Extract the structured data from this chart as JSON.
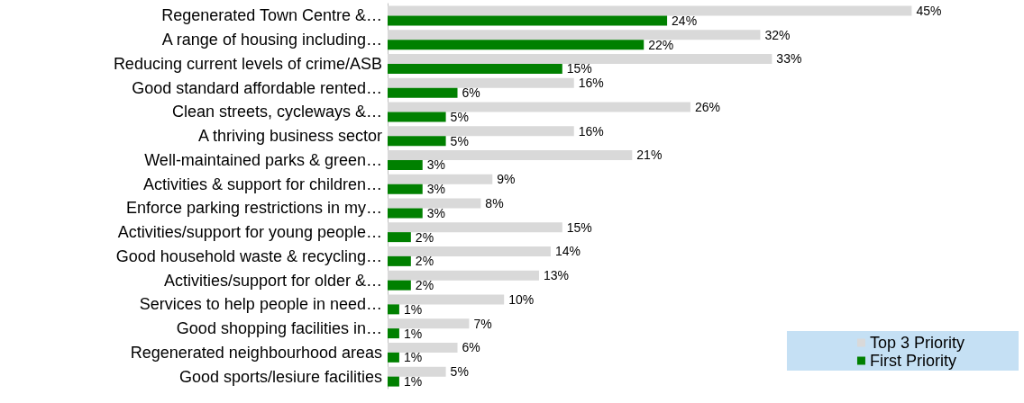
{
  "chart_data": {
    "type": "bar",
    "orientation": "horizontal",
    "categories": [
      "Regenerated Town Centre &…",
      "A range of housing including…",
      "Reducing current levels of crime/ASB",
      "Good standard affordable rented…",
      "Clean streets, cycleways &…",
      "A thriving business sector",
      "Well-maintained parks & green…",
      "Activities & support for children…",
      "Enforce parking restrictions in my…",
      "Activities/support for young people…",
      "Good household waste & recycling…",
      "Activities/support for older &…",
      "Services to help people in need…",
      "Good shopping facilities in…",
      "Regenerated neighbourhood areas",
      "Good sports/lesiure facilities"
    ],
    "series": [
      {
        "name": "Top 3 Priority",
        "color": "#d9d9d9",
        "values": [
          45,
          32,
          33,
          16,
          26,
          16,
          21,
          9,
          8,
          15,
          14,
          13,
          10,
          7,
          6,
          5
        ],
        "value_labels": [
          "45%",
          "32%",
          "33%",
          "16%",
          "26%",
          "16%",
          "21%",
          "9%",
          "8%",
          "15%",
          "14%",
          "13%",
          "10%",
          "7%",
          "6%",
          "5%"
        ]
      },
      {
        "name": "First Priority",
        "color": "#008000",
        "values": [
          24,
          22,
          15,
          6,
          5,
          5,
          3,
          3,
          3,
          2,
          2,
          2,
          1,
          1,
          1,
          1
        ],
        "value_labels": [
          "24%",
          "22%",
          "15%",
          "6%",
          "5%",
          "5%",
          "3%",
          "3%",
          "3%",
          "2%",
          "2%",
          "2%",
          "1%",
          "1%",
          "1%",
          "1%"
        ]
      }
    ],
    "legend": "bottom right",
    "grid": false
  }
}
